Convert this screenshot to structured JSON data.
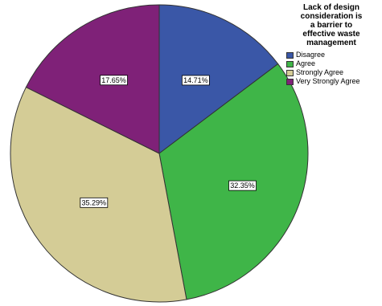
{
  "chart_data": {
    "type": "pie",
    "title": "Lack of design consideration is a barrier to effective waste management",
    "legend_title_lines": [
      "Lack of design",
      "consideration is",
      "a barrier to",
      "effective waste",
      "management"
    ],
    "legend_position": "top-right",
    "start_angle_deg": 0,
    "direction": "clockwise",
    "slices": [
      {
        "label": "Disagree",
        "value": 14.71,
        "display": "14.71%",
        "color": "#3a57a7"
      },
      {
        "label": "Agree",
        "value": 32.35,
        "display": "32.35%",
        "color": "#3fb548"
      },
      {
        "label": "Strongly Agree",
        "value": 35.29,
        "display": "35.29%",
        "color": "#d4cc96"
      },
      {
        "label": "Very Strongly Agree",
        "value": 17.65,
        "display": "17.65%",
        "color": "#7f2178"
      }
    ]
  }
}
